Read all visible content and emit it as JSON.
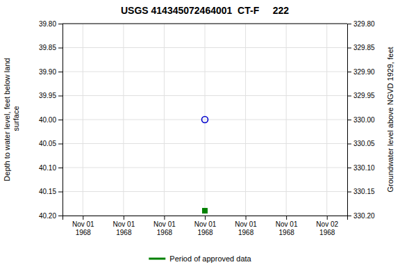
{
  "chart_data": {
    "type": "scatter",
    "title": "USGS 414345072464001  CT-F     222",
    "ylabel": "Depth to water level, feet below land\n surface",
    "y2label": "Groundwater level above NGVD 1929, feet",
    "categories": [
      "Nov 01\n1968",
      "Nov 01\n1968",
      "Nov 01\n1968",
      "Nov 01\n1968",
      "Nov 01\n1968",
      "Nov 01\n1968",
      "Nov 02\n1968"
    ],
    "series": [
      {
        "color": "#0000cc",
        "marker": "circle-open",
        "values": [
          null,
          null,
          null,
          40,
          null,
          null,
          null
        ]
      },
      {
        "name": "Period of approved data",
        "color": "#008000",
        "marker": "square",
        "values": [
          null,
          null,
          null,
          40.19,
          null,
          null,
          null
        ]
      }
    ],
    "ylim": [
      40.2,
      39.8
    ],
    "yticks": [
      {
        "value": 39.8,
        "label": "39.80"
      },
      39.85,
      {
        "value": 39.9,
        "label": "39.90"
      },
      39.95,
      {
        "value": 40,
        "label": "40.00"
      },
      40.05,
      {
        "value": 40.1,
        "label": "40.10"
      },
      40.15,
      {
        "value": 40.2,
        "label": "40.20"
      }
    ],
    "y2lim": [
      330.2,
      329.8
    ],
    "y2ticks": [
      {
        "value": 330.2,
        "label": "330.20"
      },
      330.15,
      {
        "value": 330.1,
        "label": "330.10"
      },
      330.05,
      {
        "value": 330,
        "label": "330.00"
      },
      329.95,
      {
        "value": 329.9,
        "label": "329.90"
      },
      329.85,
      {
        "value": 329.8,
        "label": "329.80"
      }
    ],
    "grid": true,
    "legend": "bottom"
  }
}
